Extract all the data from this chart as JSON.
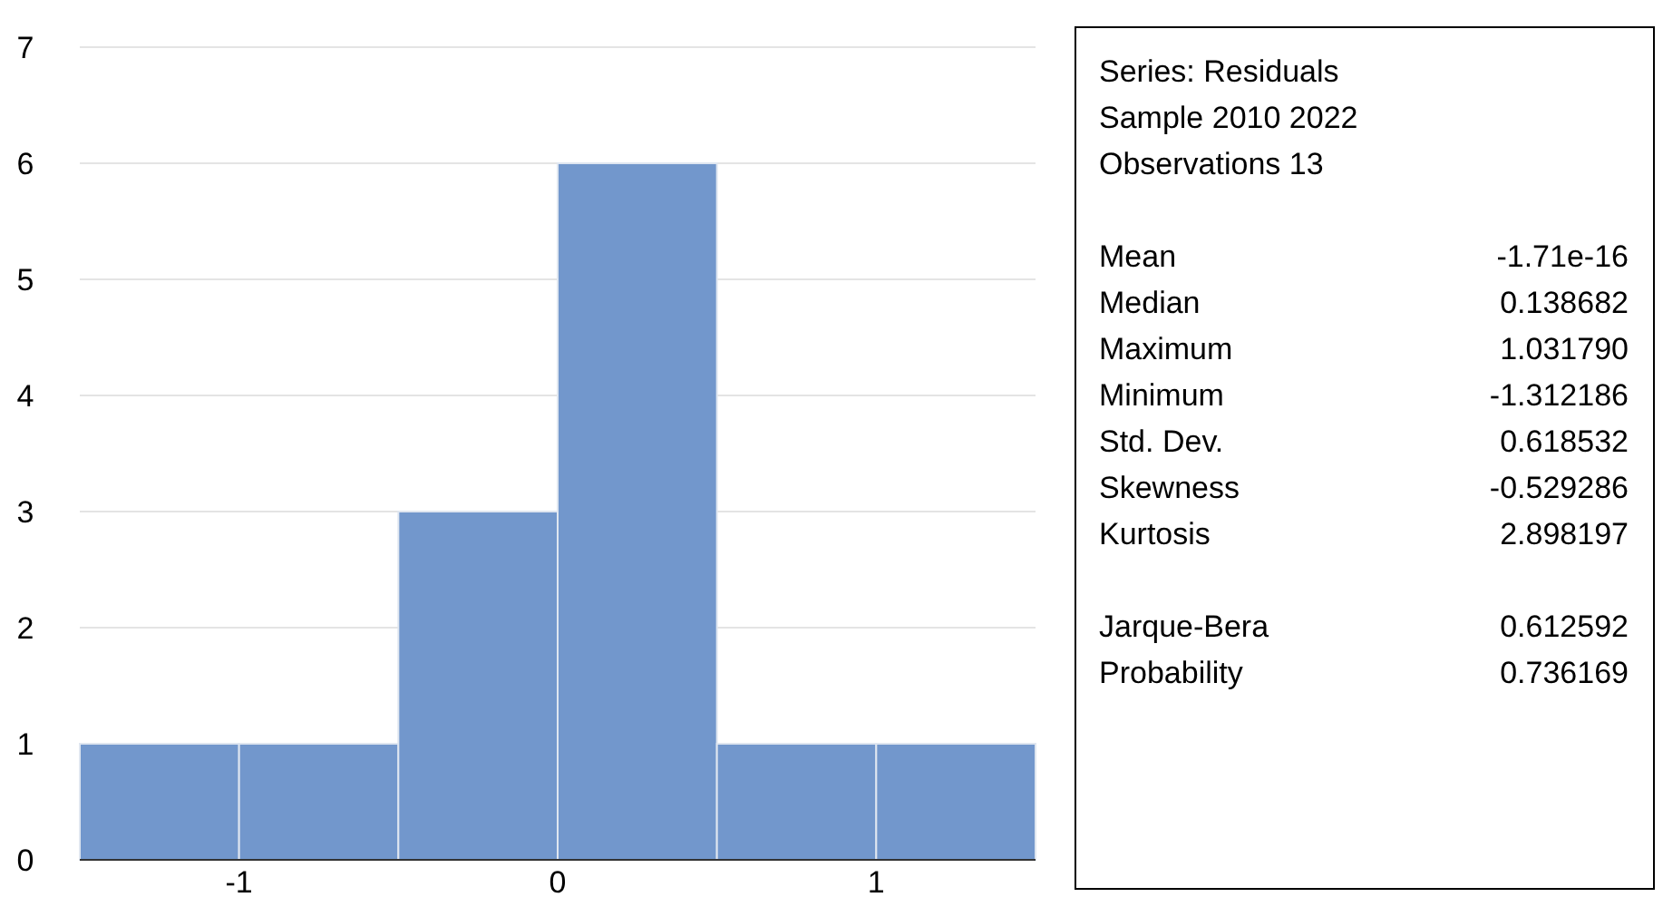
{
  "chart_data": [
    {
      "type": "histogram",
      "bins": [
        -1.5,
        -1,
        -0.5,
        0,
        0.5,
        1,
        1.5
      ],
      "values": [
        1,
        1,
        3,
        6,
        1,
        1
      ],
      "color": "#7297cc",
      "xlim": [
        -1.5,
        1.5
      ],
      "xticks": [
        -1,
        0,
        1
      ],
      "ylim": [
        0,
        7
      ],
      "yticks": [
        0,
        1,
        2,
        3,
        4,
        5,
        6,
        7
      ],
      "grid": "y"
    },
    {
      "type": "other",
      "annotations": [
        "Series: Residuals",
        "Sample 2010 2022",
        "Observations 13"
      ],
      "categories": [
        "Mean",
        "Median",
        "Maximum",
        "Minimum",
        "Std. Dev.",
        "Skewness",
        "Kurtosis",
        "Jarque-Bera",
        "Probability"
      ],
      "value_labels": [
        "-1.71e-16",
        "0.138682",
        "1.031790",
        "-1.312186",
        "0.618532",
        "-0.529286",
        "2.898197",
        "0.612592",
        "0.736169"
      ]
    }
  ]
}
